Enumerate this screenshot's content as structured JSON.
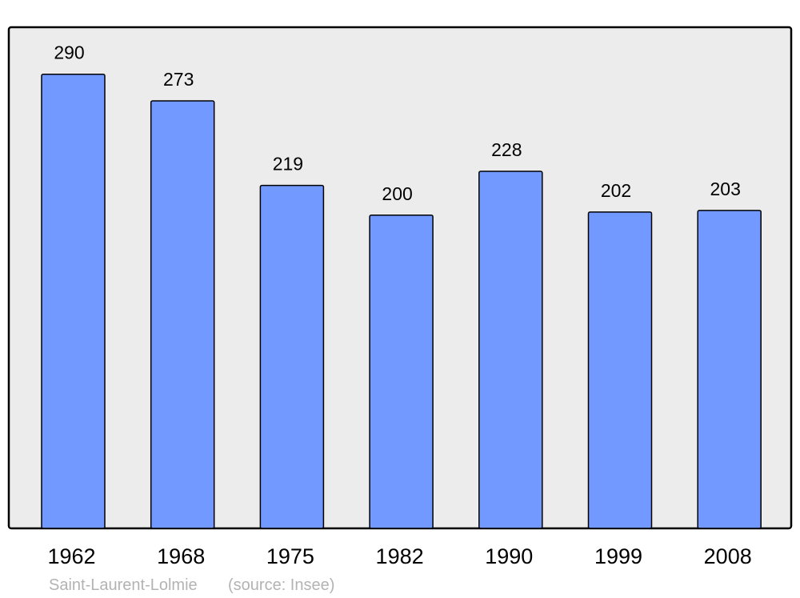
{
  "chart_data": {
    "type": "bar",
    "categories": [
      "1962",
      "1968",
      "1975",
      "1982",
      "1990",
      "1999",
      "2008"
    ],
    "values": [
      290,
      273,
      219,
      200,
      228,
      202,
      203
    ],
    "title": "",
    "xlabel": "",
    "ylabel": "",
    "ylim": [
      0,
      320
    ],
    "grid": false,
    "data_labels": true,
    "colors": {
      "bar": "#7299ff",
      "plot_background": "#ececec",
      "footer_text": "#b3b3b3"
    }
  },
  "footer": {
    "place": "Saint-Laurent-Lolmie",
    "source": "(source: Insee)"
  }
}
